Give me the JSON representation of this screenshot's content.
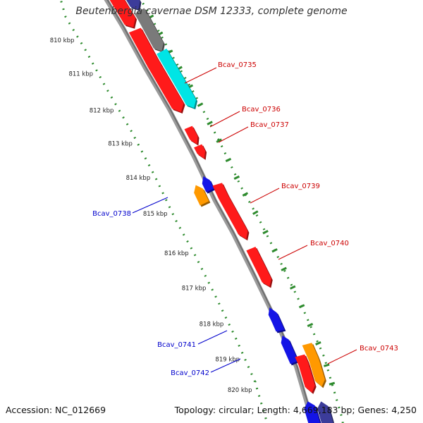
{
  "title": "Beutenbergia cavernae DSM 12333, complete genome",
  "footer": {
    "accession": "Accession: NC_012669",
    "topology": "Topology: circular; Length: 4,669,183 bp; Genes: 4,250"
  },
  "colors": {
    "backbone": "#8c8c8c",
    "ticks": "#2e8b2e",
    "red": "#ff1a1a",
    "cyan": "#00e5e5",
    "gray": "#7a7a7a",
    "orange": "#ff9900",
    "blue": "#1414e6",
    "navy": "#3c3c9a",
    "label_forward": "#cc0000",
    "label_reverse": "#0000cc"
  },
  "scale": {
    "ticks": [
      {
        "label": "810 kbp"
      },
      {
        "label": "811 kbp"
      },
      {
        "label": "812 kbp"
      },
      {
        "label": "813 kbp"
      },
      {
        "label": "814 kbp"
      },
      {
        "label": "815 kbp"
      },
      {
        "label": "816 kbp"
      },
      {
        "label": "817 kbp"
      },
      {
        "label": "818 kbp"
      },
      {
        "label": "819 kbp"
      },
      {
        "label": "820 kbp"
      }
    ]
  },
  "genes": [
    {
      "label": "",
      "color": "red",
      "strand": 1
    },
    {
      "label": "",
      "color": "navy",
      "strand": 1
    },
    {
      "label": "",
      "color": "red",
      "strand": 1
    },
    {
      "label": "",
      "color": "gray",
      "strand": 1
    },
    {
      "label": "Bcav_0735",
      "color": "cyan",
      "strand": 1
    },
    {
      "label": "Bcav_0736",
      "color": "red",
      "strand": 1
    },
    {
      "label": "Bcav_0737",
      "color": "red",
      "strand": 1
    },
    {
      "label": "",
      "color": "red",
      "strand": 1
    },
    {
      "label": "Bcav_0738",
      "color": "orange",
      "strand": -1
    },
    {
      "label": "",
      "color": "blue",
      "strand": -1
    },
    {
      "label": "Bcav_0739",
      "color": "red",
      "strand": 1
    },
    {
      "label": "Bcav_0740",
      "color": "red",
      "strand": 1
    },
    {
      "label": "Bcav_0741",
      "color": "blue",
      "strand": -1
    },
    {
      "label": "Bcav_0742",
      "color": "blue",
      "strand": -1
    },
    {
      "label": "",
      "color": "red",
      "strand": 1
    },
    {
      "label": "Bcav_0743",
      "color": "orange",
      "strand": 1
    },
    {
      "label": "",
      "color": "blue",
      "strand": -1
    },
    {
      "label": "",
      "color": "navy",
      "strand": -1
    }
  ]
}
